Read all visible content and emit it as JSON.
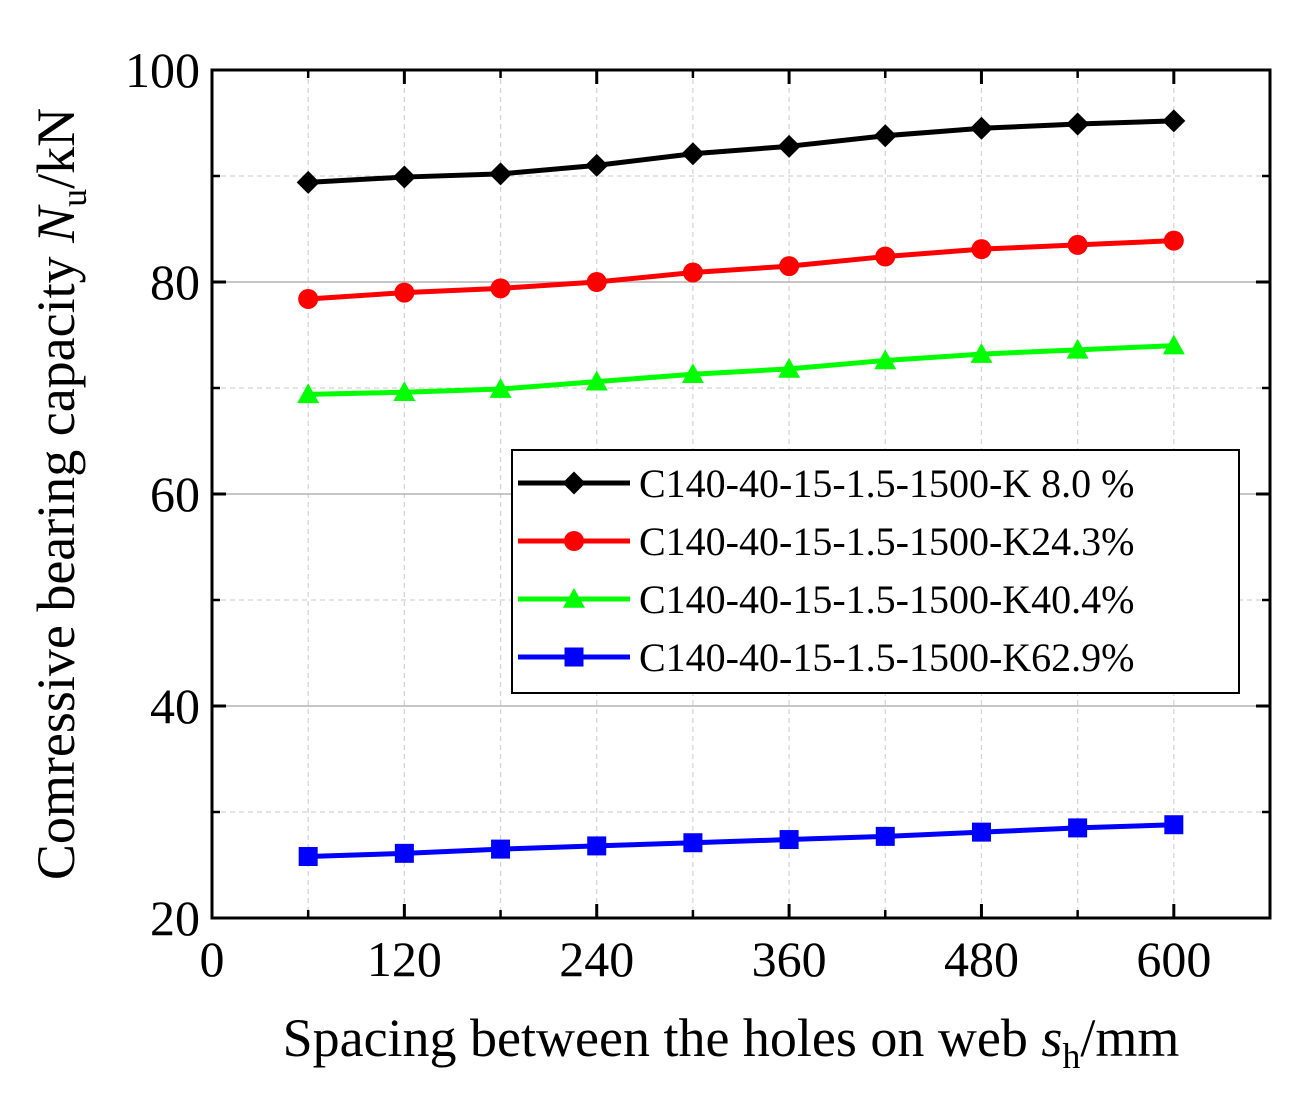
{
  "chart_data": {
    "type": "line",
    "title": "",
    "xlabel": {
      "prefix": "Spacing between the holes on web ",
      "var": "s",
      "sub": "h",
      "suffix": "/mm"
    },
    "ylabel": {
      "prefix": "Comressive bearing capacity ",
      "var": "N",
      "sub": "u",
      "suffix": "/kN"
    },
    "xlim": [
      0,
      660
    ],
    "ylim": [
      20,
      100
    ],
    "xticks": [
      0,
      120,
      240,
      360,
      480,
      600
    ],
    "xtick_labels": [
      "0",
      "120",
      "240",
      "360",
      "480",
      "600"
    ],
    "xticks_minor": [
      60,
      180,
      300,
      420,
      540
    ],
    "yticks": [
      20,
      40,
      60,
      80,
      100
    ],
    "ytick_labels": [
      "20",
      "40",
      "60",
      "80",
      "100"
    ],
    "yticks_minor": [
      30,
      50,
      70,
      90
    ],
    "grid": true,
    "legend_position": "center-right",
    "x": [
      60,
      120,
      180,
      240,
      300,
      360,
      420,
      480,
      540,
      600
    ],
    "series": [
      {
        "name": "C140-40-15-1.5-1500-K 8.0 %",
        "color": "#000000",
        "marker": "diamond",
        "values": [
          89.4,
          89.9,
          90.2,
          91.0,
          92.1,
          92.8,
          93.8,
          94.5,
          94.9,
          95.2
        ]
      },
      {
        "name": "C140-40-15-1.5-1500-K24.3%",
        "color": "#ff0000",
        "marker": "circle",
        "values": [
          78.4,
          79.0,
          79.4,
          80.0,
          80.9,
          81.5,
          82.4,
          83.1,
          83.5,
          83.9
        ]
      },
      {
        "name": "C140-40-15-1.5-1500-K40.4%",
        "color": "#00ff00",
        "marker": "triangle",
        "values": [
          69.4,
          69.6,
          69.9,
          70.6,
          71.3,
          71.8,
          72.6,
          73.2,
          73.6,
          74.0
        ]
      },
      {
        "name": "C140-40-15-1.5-1500-K62.9%",
        "color": "#0000ff",
        "marker": "square",
        "values": [
          25.8,
          26.1,
          26.5,
          26.8,
          27.1,
          27.4,
          27.7,
          28.1,
          28.5,
          28.8
        ]
      }
    ]
  }
}
